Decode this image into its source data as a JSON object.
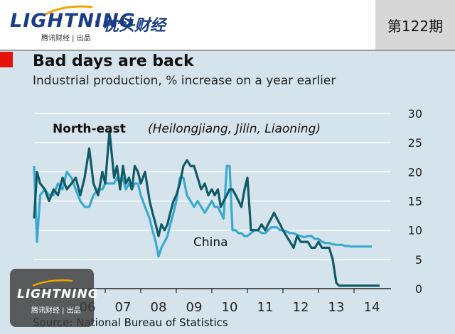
{
  "header": {
    "brand_logo": "LIGHTNING",
    "brand_separator": "·",
    "brand_name": "枕头财经",
    "brand_sub": "腾讯财经 | 出品",
    "issue": "第122期"
  },
  "chart_data": {
    "type": "line",
    "title": "Bad days are back",
    "subtitle": "Industrial production, % increase on a year earlier",
    "source": "Source: National Bureau of Statistics",
    "ylim": [
      0,
      30
    ],
    "yticks": [
      "0",
      "5",
      "10",
      "15",
      "20",
      "25",
      "30"
    ],
    "xlim": [
      2005.0,
      2015.0
    ],
    "xticks": [
      {
        "label": "06",
        "x": 2006.5
      },
      {
        "label": "07",
        "x": 2007.5
      },
      {
        "label": "08",
        "x": 2008.5
      },
      {
        "label": "09",
        "x": 2009.5
      },
      {
        "label": "10",
        "x": 2010.5
      },
      {
        "label": "11",
        "x": 2011.5
      },
      {
        "label": "12",
        "x": 2012.5
      },
      {
        "label": "13",
        "x": 2013.5
      },
      {
        "label": "14",
        "x": 2014.5
      }
    ],
    "grid": true,
    "y_axis_position": "right",
    "annotations": {
      "northeast_label": "North-east",
      "northeast_detail": "(Heilongjiang, Jilin, Liaoning)",
      "china_label": "China"
    },
    "colors": {
      "background": "#d5e4ec",
      "northeast": "#0f5a66",
      "china": "#3aa9cf",
      "grid": "#ffffff",
      "accent": "#e3120b"
    },
    "series": [
      {
        "name": "North-east",
        "color": "#0f5a66",
        "x": [
          2005.0,
          2005.08,
          2005.17,
          2005.3,
          2005.42,
          2005.55,
          2005.67,
          2005.8,
          2005.92,
          2006.05,
          2006.17,
          2006.3,
          2006.42,
          2006.55,
          2006.67,
          2006.8,
          2006.92,
          2007.0,
          2007.12,
          2007.25,
          2007.33,
          2007.42,
          2007.5,
          2007.58,
          2007.67,
          2007.75,
          2007.83,
          2007.92,
          2008.0,
          2008.12,
          2008.25,
          2008.33,
          2008.42,
          2008.5,
          2008.58,
          2008.67,
          2008.75,
          2008.83,
          2008.92,
          2009.0,
          2009.1,
          2009.2,
          2009.3,
          2009.4,
          2009.5,
          2009.6,
          2009.7,
          2009.8,
          2009.9,
          2010.0,
          2010.08,
          2010.17,
          2010.25,
          2010.33,
          2010.42,
          2010.5,
          2010.58,
          2010.67,
          2010.75,
          2010.83,
          2010.92,
          2011.0,
          2011.1,
          2011.2,
          2011.3,
          2011.4,
          2011.5,
          2011.58,
          2011.67,
          2011.75,
          2011.83,
          2011.92,
          2012.0,
          2012.1,
          2012.2,
          2012.3,
          2012.4,
          2012.5,
          2012.6,
          2012.7,
          2012.8,
          2012.9,
          2013.0,
          2013.1,
          2013.2,
          2013.3,
          2013.4,
          2013.5,
          2013.58,
          2013.67,
          2013.75,
          2013.83,
          2013.92,
          2014.0,
          2014.1,
          2014.2,
          2014.3,
          2014.4,
          2014.5,
          2014.58,
          2014.65,
          2014.72
        ],
        "values": [
          12,
          20,
          18,
          17,
          15,
          17,
          16,
          19,
          17,
          18,
          19,
          16,
          19,
          24,
          18,
          16,
          20,
          18,
          27,
          19,
          21,
          17,
          21,
          18,
          19,
          17,
          21,
          20,
          18,
          20,
          15,
          13,
          11,
          9,
          11,
          10,
          11,
          13,
          15,
          16,
          18,
          21,
          22,
          21,
          21,
          19,
          17,
          18,
          16,
          17,
          16,
          17,
          14,
          15,
          16,
          17,
          17,
          16,
          15,
          14,
          17,
          19,
          10,
          10,
          10,
          11,
          10,
          11,
          12,
          13,
          12,
          11,
          10,
          9,
          8,
          7,
          9,
          8,
          8,
          8,
          7,
          7,
          8,
          7,
          7,
          7,
          5,
          1,
          0.5,
          0.5,
          0.5,
          0.5,
          0.5,
          0.5,
          0.5,
          0.5,
          0.5,
          0.5,
          0.5,
          0.5,
          0.5,
          0.5
        ]
      },
      {
        "name": "China",
        "color": "#3aa9cf",
        "x": [
          2005.0,
          2005.08,
          2005.17,
          2005.3,
          2005.42,
          2005.55,
          2005.67,
          2005.8,
          2005.92,
          2006.05,
          2006.17,
          2006.3,
          2006.42,
          2006.55,
          2006.67,
          2006.8,
          2006.92,
          2007.0,
          2007.12,
          2007.25,
          2007.33,
          2007.42,
          2007.5,
          2007.58,
          2007.67,
          2007.75,
          2007.83,
          2007.92,
          2008.0,
          2008.12,
          2008.25,
          2008.33,
          2008.42,
          2008.5,
          2008.58,
          2008.67,
          2008.75,
          2008.83,
          2008.92,
          2009.0,
          2009.1,
          2009.2,
          2009.3,
          2009.4,
          2009.5,
          2009.6,
          2009.7,
          2009.8,
          2009.9,
          2010.0,
          2010.08,
          2010.17,
          2010.25,
          2010.33,
          2010.42,
          2010.5,
          2010.58,
          2010.67,
          2010.75,
          2010.83,
          2010.92,
          2011.0,
          2011.1,
          2011.2,
          2011.3,
          2011.4,
          2011.5,
          2011.58,
          2011.67,
          2011.75,
          2011.83,
          2011.92,
          2012.0,
          2012.1,
          2012.2,
          2012.3,
          2012.4,
          2012.5,
          2012.6,
          2012.7,
          2012.8,
          2012.9,
          2013.0,
          2013.1,
          2013.2,
          2013.3,
          2013.4,
          2013.5,
          2013.58,
          2013.67,
          2013.75,
          2013.83,
          2013.92,
          2014.0,
          2014.1,
          2014.2,
          2014.3,
          2014.4,
          2014.5
        ],
        "values": [
          21,
          8,
          16,
          17,
          16,
          16,
          18,
          17,
          20,
          19,
          17,
          15,
          14,
          14,
          16,
          17,
          17,
          18,
          18,
          18,
          19,
          18,
          19,
          17,
          18,
          17,
          18,
          18,
          16,
          14,
          12,
          10,
          8,
          5.5,
          7,
          8,
          9,
          11,
          13,
          15,
          19,
          19,
          16,
          15,
          14,
          15,
          14,
          13,
          14,
          15,
          14,
          14,
          13,
          12,
          21,
          21,
          10,
          10,
          9.5,
          9.5,
          9,
          9,
          9.5,
          10,
          10,
          9.5,
          9.5,
          10,
          10.5,
          10.5,
          10.5,
          10,
          10,
          9.8,
          9.5,
          9.5,
          9.2,
          9.0,
          8.8,
          9.0,
          9.0,
          8.5,
          8.5,
          8.0,
          7.8,
          7.8,
          7.6,
          7.5,
          7.5,
          7.5,
          7.3,
          7.3,
          7.2,
          7.2,
          7.2,
          7.2,
          7.2,
          7.2,
          7.2
        ]
      }
    ]
  },
  "watermark": {
    "logo": "LIGHTNING",
    "sub": "腾讯财经 | 出品"
  }
}
